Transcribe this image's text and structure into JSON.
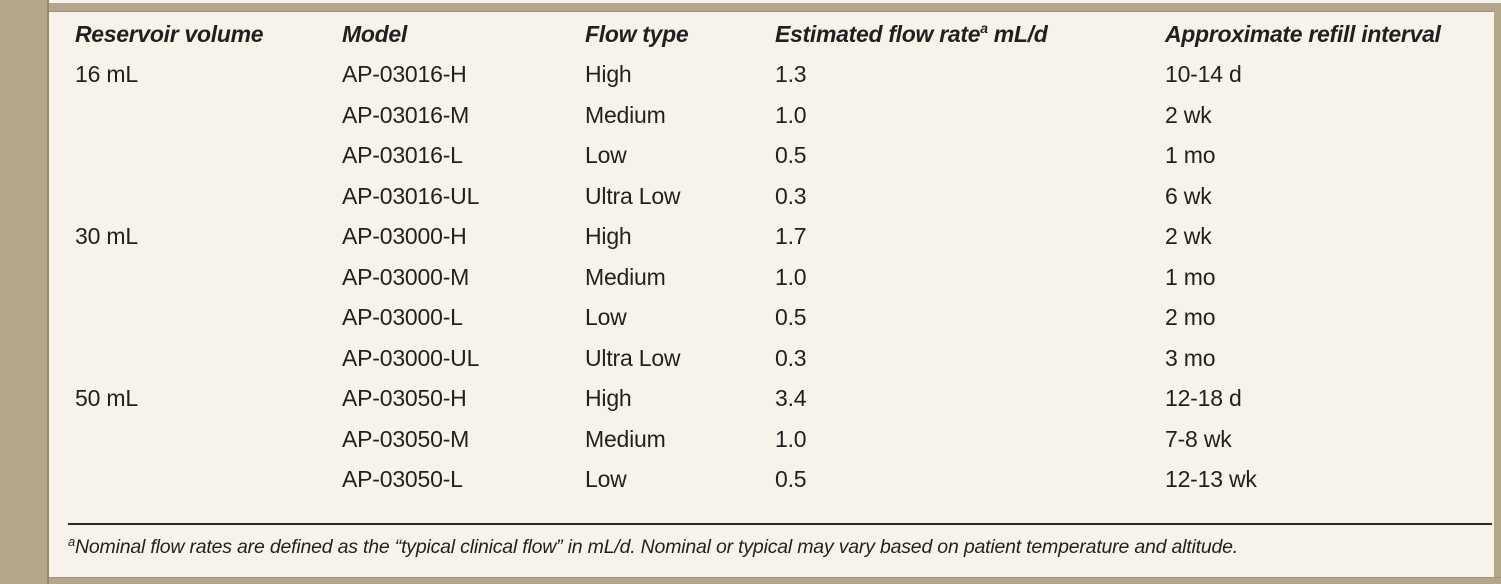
{
  "colors": {
    "accent_tan": "#b3a68b",
    "background_cream": "#f8f3ea",
    "text": "#231f20",
    "rule": "#2c2a28"
  },
  "table": {
    "columns": [
      {
        "text": "Reservoir volume"
      },
      {
        "text": "Model"
      },
      {
        "text": "Flow type"
      },
      {
        "text": "Estimated flow rate",
        "sup": "a",
        "after": " mL/d"
      },
      {
        "text": "Approximate refill interval"
      }
    ],
    "rows": [
      [
        "16 mL",
        "AP-03016-H",
        "High",
        "1.3",
        "10-14 d"
      ],
      [
        "",
        "AP-03016-M",
        "Medium",
        "1.0",
        "2 wk"
      ],
      [
        "",
        "AP-03016-L",
        "Low",
        "0.5",
        "1 mo"
      ],
      [
        "",
        "AP-03016-UL",
        "Ultra Low",
        "0.3",
        "6 wk"
      ],
      [
        "30 mL",
        "AP-03000-H",
        "High",
        "1.7",
        "2 wk"
      ],
      [
        "",
        "AP-03000-M",
        "Medium",
        "1.0",
        "1 mo"
      ],
      [
        "",
        "AP-03000-L",
        "Low",
        "0.5",
        "2 mo"
      ],
      [
        "",
        "AP-03000-UL",
        "Ultra Low",
        "0.3",
        "3 mo"
      ],
      [
        "50 mL",
        "AP-03050-H",
        "High",
        "3.4",
        "12-18 d"
      ],
      [
        "",
        "AP-03050-M",
        "Medium",
        "1.0",
        "7-8 wk"
      ],
      [
        "",
        "AP-03050-L",
        "Low",
        "0.5",
        "12-13 wk"
      ]
    ]
  },
  "footnote": {
    "marker": "a",
    "text": "Nominal flow rates are defined as the “typical clinical flow” in mL/d. Nominal or typical may vary based on patient temperature and altitude."
  }
}
